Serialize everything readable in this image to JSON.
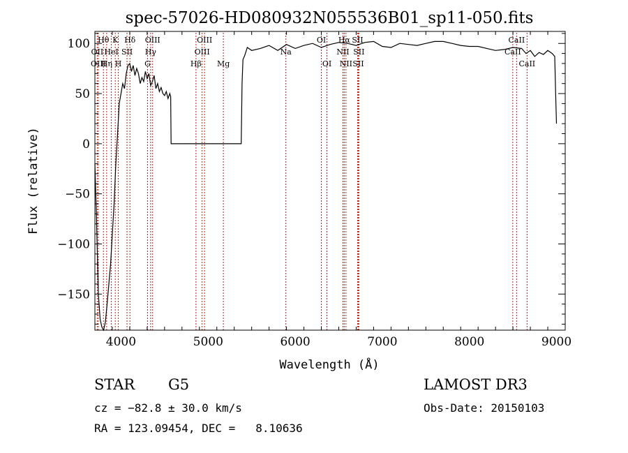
{
  "chart_data": {
    "type": "line",
    "title": "spec-57026-HD080932N055536B01_sp11-050.fits",
    "xlabel": "Wavelength (Å)",
    "ylabel": "Flux (relative)",
    "xlim": [
      3700,
      9100
    ],
    "ylim": [
      -186,
      112
    ],
    "xticks": [
      4000,
      5000,
      6000,
      7000,
      8000,
      9000
    ],
    "yticks": [
      -150,
      -100,
      -50,
      0,
      50,
      100
    ],
    "grid": false,
    "line_color": "#000000",
    "marker_color": "#b22222",
    "series": [
      {
        "x": [
          3700,
          3720,
          3740,
          3760,
          3780,
          3800,
          3820,
          3840,
          3860,
          3880,
          3900,
          3920,
          3940,
          3960,
          3980,
          4000,
          4020,
          4040,
          4060,
          4080,
          4100,
          4120,
          4140,
          4160,
          4180,
          4200,
          4220,
          4240,
          4260,
          4280,
          4300,
          4320,
          4340,
          4360,
          4380,
          4400,
          4420,
          4440,
          4460,
          4480,
          4500,
          4520,
          4540,
          4560,
          4570,
          4575,
          5380,
          5390,
          5400,
          5420,
          5450,
          5500,
          5600,
          5700,
          5800,
          5900,
          6000,
          6100,
          6200,
          6300,
          6400,
          6500,
          6600,
          6700,
          6800,
          6900,
          7000,
          7100,
          7200,
          7300,
          7400,
          7500,
          7600,
          7700,
          7800,
          7900,
          8000,
          8100,
          8200,
          8300,
          8400,
          8500,
          8600,
          8650,
          8700,
          8750,
          8800,
          8850,
          8900,
          8950,
          8980,
          8990,
          9000
        ],
        "y": [
          -20,
          -80,
          -150,
          -175,
          -183,
          -186,
          -178,
          -160,
          -140,
          -120,
          -90,
          -60,
          -20,
          10,
          40,
          50,
          60,
          55,
          70,
          78,
          80,
          72,
          78,
          68,
          75,
          70,
          60,
          66,
          62,
          72,
          65,
          70,
          58,
          62,
          68,
          55,
          60,
          52,
          56,
          50,
          48,
          52,
          45,
          50,
          47,
          0,
          0,
          60,
          84,
          88,
          96,
          93,
          95,
          98,
          93,
          99,
          95,
          98,
          100,
          96,
          99,
          101,
          100,
          98,
          101,
          102,
          97,
          96,
          100,
          99,
          98,
          100,
          102,
          102,
          100,
          98,
          97,
          97,
          95,
          93,
          94,
          96,
          95,
          90,
          93,
          87,
          91,
          89,
          93,
          90,
          87,
          50,
          20
        ]
      }
    ],
    "line_markers": [
      {
        "label": "Hθ",
        "x": 3798,
        "row": 0
      },
      {
        "label": "OII",
        "x": 3727,
        "row": 1
      },
      {
        "label": "OIII",
        "x": 3740,
        "row": 2
      },
      {
        "label": "K",
        "x": 3934,
        "row": 0
      },
      {
        "label": "HeI",
        "x": 3889,
        "row": 1
      },
      {
        "label": "Hη",
        "x": 3835,
        "row": 2
      },
      {
        "label": "Hδ",
        "x": 4102,
        "row": 0
      },
      {
        "label": "SII",
        "x": 4069,
        "row": 1
      },
      {
        "label": "H",
        "x": 3969,
        "row": 2
      },
      {
        "label": "OIII",
        "x": 4363,
        "row": 0
      },
      {
        "label": "Hγ",
        "x": 4340,
        "row": 1
      },
      {
        "label": "G",
        "x": 4305,
        "row": 2
      },
      {
        "label": "OIII",
        "x": 4959,
        "row": 0
      },
      {
        "label": "OIII",
        "x": 4931,
        "row": 1
      },
      {
        "label": "Hβ",
        "x": 4861,
        "row": 2
      },
      {
        "label": "Mg",
        "x": 5175,
        "row": 2
      },
      {
        "label": "Na",
        "x": 5893,
        "row": 1
      },
      {
        "label": "OI",
        "x": 6300,
        "row": 0
      },
      {
        "label": "OI",
        "x": 6364,
        "row": 2
      },
      {
        "label": "Hα",
        "x": 6563,
        "row": 0
      },
      {
        "label": "SII",
        "x": 6716,
        "row": 0
      },
      {
        "label": "NII",
        "x": 6548,
        "row": 1
      },
      {
        "label": "SII",
        "x": 6731,
        "row": 1
      },
      {
        "label": "NII",
        "x": 6583,
        "row": 2
      },
      {
        "label": "SII",
        "x": 6724,
        "row": 2
      },
      {
        "label": "CaII",
        "x": 8542,
        "row": 0
      },
      {
        "label": "CaII",
        "x": 8498,
        "row": 1
      },
      {
        "label": "CaII",
        "x": 8662,
        "row": 2
      }
    ]
  },
  "info": {
    "object_class": "STAR",
    "subclass": "G5",
    "survey": "LAMOST DR3",
    "cz": "cz = −82.8 ± 30.0 km/s",
    "obs_date": "Obs-Date: 20150103",
    "coords": "RA = 123.09454, DEC =   8.10636"
  }
}
